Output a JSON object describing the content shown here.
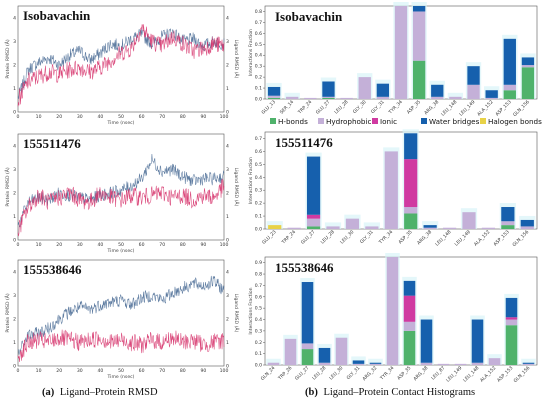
{
  "captions": {
    "a_label": "(a)",
    "a_text": "Ligand–Protein RMSD",
    "b_label": "(b)",
    "b_text": "Ligand–Protein Contact Histograms"
  },
  "colors": {
    "hbonds": "#4fb26b",
    "hydrophobic": "#c4b0d8",
    "ionic": "#d03aa1",
    "water": "#1660ad",
    "halogen": "#e8d247",
    "protein_rmsd": "#4b6d96",
    "ligand_rmsd": "#d6336c",
    "row_highlight": "#d9f4f8"
  },
  "legend": [
    {
      "name": "H-bonds",
      "key": "hbonds"
    },
    {
      "name": "Hydrophobic",
      "key": "hydrophobic"
    },
    {
      "name": "Ionic",
      "key": "ionic"
    },
    {
      "name": "Water bridges",
      "key": "water"
    },
    {
      "name": "Halogen bonds",
      "key": "halogen"
    }
  ],
  "chart_data": [
    {
      "type": "line",
      "title": "Isobavachin",
      "xlabel": "Time (nsec)",
      "ylabel": "Protein RMSD (Å)",
      "ylabel_right": "Ligand RMSD (Å)",
      "ylim": [
        0,
        4.5
      ],
      "xlim": [
        0,
        100
      ],
      "x_ticks": [
        "0",
        "10",
        "20",
        "30",
        "40",
        "50",
        "60",
        "70",
        "80",
        "90",
        "100"
      ],
      "y_ticks": [
        "0",
        "1",
        "2",
        "3",
        "4"
      ],
      "series": [
        {
          "name": "Protein RMSD",
          "color_key": "protein_rmsd",
          "x": [
            0,
            5,
            10,
            15,
            20,
            25,
            30,
            35,
            40,
            45,
            50,
            55,
            60,
            65,
            70,
            75,
            80,
            85,
            90,
            95,
            100
          ],
          "values": [
            0.6,
            1.8,
            2.1,
            2.3,
            2.0,
            2.4,
            2.6,
            2.2,
            2.5,
            2.9,
            2.8,
            3.1,
            3.3,
            2.9,
            3.2,
            3.4,
            3.0,
            3.1,
            2.8,
            3.0,
            2.9
          ]
        },
        {
          "name": "Ligand RMSD",
          "color_key": "ligand_rmsd",
          "x": [
            0,
            5,
            10,
            15,
            20,
            25,
            30,
            35,
            40,
            45,
            50,
            55,
            60,
            65,
            70,
            75,
            80,
            85,
            90,
            95,
            100
          ],
          "values": [
            0.5,
            1.3,
            1.5,
            1.7,
            1.6,
            1.8,
            1.9,
            1.7,
            1.9,
            2.2,
            2.5,
            2.7,
            3.6,
            3.0,
            2.8,
            3.2,
            2.9,
            2.6,
            2.7,
            2.9,
            2.8
          ]
        }
      ]
    },
    {
      "type": "line",
      "title": "155511476",
      "xlabel": "Time (nsec)",
      "ylabel": "Protein RMSD (Å)",
      "ylabel_right": "Ligand RMSD (Å)",
      "ylim": [
        0,
        4.5
      ],
      "xlim": [
        0,
        100
      ],
      "x_ticks": [
        "0",
        "10",
        "20",
        "30",
        "40",
        "50",
        "60",
        "70",
        "80",
        "90",
        "100"
      ],
      "y_ticks": [
        "0",
        "1",
        "2",
        "3",
        "4"
      ],
      "series": [
        {
          "name": "Protein RMSD",
          "color_key": "protein_rmsd",
          "x": [
            0,
            5,
            10,
            15,
            20,
            25,
            30,
            35,
            40,
            45,
            50,
            55,
            60,
            65,
            70,
            75,
            80,
            85,
            90,
            95,
            100
          ],
          "values": [
            0.6,
            1.6,
            1.8,
            1.7,
            2.0,
            1.9,
            1.8,
            1.7,
            1.9,
            2.0,
            2.1,
            2.3,
            2.6,
            3.4,
            2.9,
            3.0,
            2.7,
            2.5,
            2.6,
            2.6,
            2.7
          ]
        },
        {
          "name": "Ligand RMSD",
          "color_key": "ligand_rmsd",
          "x": [
            0,
            5,
            10,
            15,
            20,
            25,
            30,
            35,
            40,
            45,
            50,
            55,
            60,
            65,
            70,
            75,
            80,
            85,
            90,
            95,
            100
          ],
          "values": [
            0.4,
            1.4,
            1.9,
            1.6,
            1.8,
            2.0,
            1.7,
            1.6,
            2.0,
            1.8,
            1.7,
            1.9,
            1.8,
            1.9,
            2.0,
            1.8,
            1.9,
            1.7,
            1.9,
            1.8,
            2.3
          ]
        }
      ]
    },
    {
      "type": "line",
      "title": "155538646",
      "xlabel": "Time (nsec)",
      "ylabel": "Protein RMSD (Å)",
      "ylabel_right": "Ligand RMSD (Å)",
      "ylim": [
        0,
        4.5
      ],
      "xlim": [
        0,
        100
      ],
      "x_ticks": [
        "0",
        "10",
        "20",
        "30",
        "40",
        "50",
        "60",
        "70",
        "80",
        "90",
        "100"
      ],
      "y_ticks": [
        "0",
        "1",
        "2",
        "3",
        "4"
      ],
      "series": [
        {
          "name": "Protein RMSD",
          "color_key": "protein_rmsd",
          "x": [
            0,
            5,
            10,
            15,
            20,
            25,
            30,
            35,
            40,
            45,
            50,
            55,
            60,
            65,
            70,
            75,
            80,
            85,
            90,
            95,
            100
          ],
          "values": [
            0.5,
            1.3,
            1.4,
            1.6,
            2.0,
            2.3,
            2.5,
            2.4,
            2.6,
            2.7,
            2.8,
            2.6,
            2.9,
            3.0,
            2.8,
            3.1,
            3.3,
            3.5,
            3.4,
            3.6,
            3.2
          ]
        },
        {
          "name": "Ligand RMSD",
          "color_key": "ligand_rmsd",
          "x": [
            0,
            5,
            10,
            15,
            20,
            25,
            30,
            35,
            40,
            45,
            50,
            55,
            60,
            65,
            70,
            75,
            80,
            85,
            90,
            95,
            100
          ],
          "values": [
            0.4,
            1.0,
            1.1,
            1.0,
            1.2,
            1.1,
            1.0,
            1.1,
            1.2,
            1.0,
            1.1,
            1.0,
            0.9,
            1.1,
            1.0,
            1.2,
            1.0,
            1.1,
            0.9,
            1.0,
            1.1
          ]
        }
      ]
    },
    {
      "type": "bar",
      "stacked": true,
      "title": "Isobavachin",
      "ylabel": "Interactions Fraction",
      "ylim": [
        0,
        0.85
      ],
      "y_ticks": [
        "0.0",
        "0.1",
        "0.2",
        "0.3",
        "0.4",
        "0.5",
        "0.6",
        "0.7",
        "0.8"
      ],
      "categories": [
        "GLU_13",
        "SER_14",
        "TRP_24",
        "GLU_27",
        "LEU_28",
        "GLY_30",
        "GLY_31",
        "TYR_34",
        "ASP_35",
        "ARG_38",
        "LEU_148",
        "LEU_149",
        "ALA_152",
        "ASP_153",
        "GLN_156"
      ],
      "series": [
        {
          "name": "H-bonds",
          "values": [
            0.01,
            0,
            0,
            0.01,
            0,
            0,
            0,
            0,
            0.35,
            0,
            0,
            0,
            0,
            0.08,
            0.29
          ]
        },
        {
          "name": "Hydrophobic",
          "values": [
            0.02,
            0.02,
            0.01,
            0.01,
            0.01,
            0.2,
            0.02,
            0.85,
            0.45,
            0.02,
            0.02,
            0.13,
            0.01,
            0.05,
            0.02
          ]
        },
        {
          "name": "Ionic",
          "values": [
            0,
            0,
            0,
            0,
            0,
            0,
            0,
            0,
            0,
            0,
            0,
            0,
            0,
            0,
            0
          ]
        },
        {
          "name": "Water bridges",
          "values": [
            0.08,
            0,
            0,
            0.14,
            0,
            0,
            0.12,
            0,
            0.07,
            0.11,
            0,
            0.17,
            0.07,
            0.42,
            0.07
          ]
        },
        {
          "name": "Halogen bonds",
          "values": [
            0,
            0,
            0,
            0,
            0,
            0,
            0,
            0,
            0,
            0,
            0,
            0,
            0,
            0,
            0
          ]
        }
      ]
    },
    {
      "type": "bar",
      "stacked": true,
      "title": "155511476",
      "ylabel": "Interactions Fraction",
      "ylim": [
        0,
        0.75
      ],
      "y_ticks": [
        "0.0",
        "0.1",
        "0.2",
        "0.3",
        "0.4",
        "0.5",
        "0.6",
        "0.7"
      ],
      "categories": [
        "GLU_23",
        "TRP_24",
        "GLU_27",
        "LEU_28",
        "LEU_30",
        "GLY_31",
        "TYR_34",
        "ASP_35",
        "ARG_38",
        "LEU_148",
        "LEU_149",
        "ALA_152",
        "ASP_153",
        "GLN_156"
      ],
      "series": [
        {
          "name": "H-bonds",
          "values": [
            0,
            0,
            0.02,
            0,
            0,
            0,
            0,
            0.12,
            0,
            0,
            0,
            0,
            0.03,
            0
          ]
        },
        {
          "name": "Hydrophobic",
          "values": [
            0,
            0.01,
            0.06,
            0.02,
            0.08,
            0.02,
            0.6,
            0.05,
            0.01,
            0.01,
            0.13,
            0.01,
            0.03,
            0.02
          ]
        },
        {
          "name": "Ionic",
          "values": [
            0,
            0,
            0.03,
            0,
            0,
            0,
            0,
            0.37,
            0,
            0,
            0,
            0,
            0,
            0
          ]
        },
        {
          "name": "Water bridges",
          "values": [
            0,
            0,
            0.45,
            0,
            0,
            0,
            0,
            0.2,
            0.02,
            0,
            0,
            0,
            0.11,
            0.05
          ]
        },
        {
          "name": "Halogen bonds",
          "values": [
            0.03,
            0,
            0,
            0,
            0,
            0,
            0,
            0,
            0,
            0,
            0,
            0,
            0,
            0
          ]
        }
      ]
    },
    {
      "type": "bar",
      "stacked": true,
      "title": "155538646",
      "ylabel": "Interactions Fraction",
      "ylim": [
        0,
        0.95
      ],
      "y_ticks": [
        "0.0",
        "0.1",
        "0.2",
        "0.3",
        "0.4",
        "0.5",
        "0.6",
        "0.7",
        "0.8",
        "0.9"
      ],
      "categories": [
        "GLN_24",
        "TRP_26",
        "GLU_27",
        "LEU_28",
        "LEU_30",
        "GLY_31",
        "ARG_32",
        "TYR_34",
        "ASP_35",
        "ARG_38",
        "LEU_87",
        "LEU_149",
        "LEU_148",
        "ALA_152",
        "ASP_153",
        "GLN_156"
      ],
      "series": [
        {
          "name": "H-bonds",
          "values": [
            0,
            0,
            0.14,
            0,
            0,
            0,
            0,
            0,
            0.3,
            0,
            0,
            0,
            0,
            0,
            0.35,
            0
          ]
        },
        {
          "name": "Hydrophobic",
          "values": [
            0.02,
            0.23,
            0.05,
            0.02,
            0.24,
            0.01,
            0.01,
            0.95,
            0.08,
            0.02,
            0.01,
            0.01,
            0.02,
            0.06,
            0.05,
            0.01
          ]
        },
        {
          "name": "Ionic",
          "values": [
            0,
            0,
            0,
            0,
            0,
            0,
            0,
            0,
            0.23,
            0,
            0,
            0,
            0,
            0,
            0.02,
            0
          ]
        },
        {
          "name": "Water bridges",
          "values": [
            0,
            0,
            0.54,
            0.13,
            0,
            0.03,
            0.01,
            0,
            0.13,
            0.38,
            0,
            0,
            0.38,
            0,
            0.17,
            0.01
          ]
        },
        {
          "name": "Halogen bonds",
          "values": [
            0,
            0,
            0,
            0,
            0,
            0,
            0,
            0,
            0,
            0,
            0,
            0,
            0,
            0,
            0,
            0
          ]
        }
      ]
    }
  ]
}
